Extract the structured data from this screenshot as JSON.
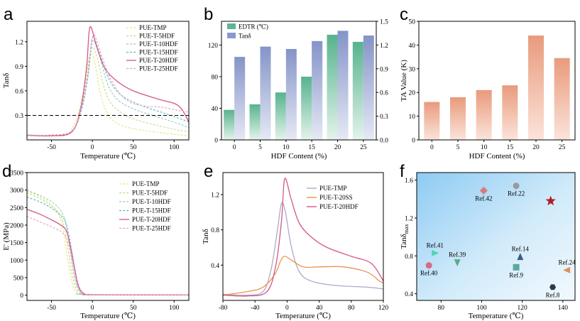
{
  "panel_letters": [
    "a",
    "b",
    "c",
    "d",
    "e",
    "f"
  ],
  "chart_data": [
    {
      "id": "a",
      "type": "line",
      "xlabel": "Temperature (℃)",
      "ylabel": "Tanδ",
      "xlim": [
        -80,
        118
      ],
      "ylim": [
        0,
        1.45
      ],
      "xticks": [
        -50,
        0,
        50,
        100
      ],
      "yticks": [
        0.3,
        0.6,
        0.9,
        1.2
      ],
      "hline": 0.3,
      "legend": "top-right",
      "series": [
        {
          "name": "PUE-TMP",
          "color": "#e6e67a",
          "dash": true,
          "points": [
            [
              -80,
              0.05
            ],
            [
              -50,
              0.05
            ],
            [
              -30,
              0.07
            ],
            [
              -18,
              0.3
            ],
            [
              -10,
              0.65
            ],
            [
              -3,
              1.05
            ],
            [
              3,
              0.95
            ],
            [
              10,
              0.55
            ],
            [
              20,
              0.3
            ],
            [
              35,
              0.18
            ],
            [
              60,
              0.12
            ],
            [
              90,
              0.08
            ],
            [
              118,
              0.05
            ]
          ]
        },
        {
          "name": "PUE-T-5HDF",
          "color": "#c9d98c",
          "dash": true,
          "points": [
            [
              -80,
              0.05
            ],
            [
              -50,
              0.05
            ],
            [
              -28,
              0.08
            ],
            [
              -16,
              0.3
            ],
            [
              -8,
              0.7
            ],
            [
              -1,
              1.12
            ],
            [
              6,
              1.0
            ],
            [
              15,
              0.62
            ],
            [
              25,
              0.42
            ],
            [
              45,
              0.28
            ],
            [
              70,
              0.2
            ],
            [
              100,
              0.13
            ],
            [
              118,
              0.1
            ]
          ]
        },
        {
          "name": "PUE-T-10HDF",
          "color": "#8fd1b6",
          "dash": true,
          "points": [
            [
              -80,
              0.05
            ],
            [
              -50,
              0.05
            ],
            [
              -26,
              0.1
            ],
            [
              -14,
              0.35
            ],
            [
              -6,
              0.75
            ],
            [
              0,
              1.2
            ],
            [
              8,
              1.05
            ],
            [
              18,
              0.7
            ],
            [
              30,
              0.5
            ],
            [
              50,
              0.38
            ],
            [
              80,
              0.28
            ],
            [
              105,
              0.2
            ],
            [
              118,
              0.15
            ]
          ]
        },
        {
          "name": "PUE-T-15HDF",
          "color": "#5fb7c4",
          "dash": true,
          "points": [
            [
              -80,
              0.06
            ],
            [
              -50,
              0.06
            ],
            [
              -25,
              0.1
            ],
            [
              -13,
              0.38
            ],
            [
              -5,
              0.8
            ],
            [
              0,
              1.25
            ],
            [
              8,
              1.08
            ],
            [
              20,
              0.75
            ],
            [
              35,
              0.55
            ],
            [
              60,
              0.42
            ],
            [
              90,
              0.32
            ],
            [
              118,
              0.22
            ]
          ]
        },
        {
          "name": "PUE-T-20HDF",
          "color": "#d4568a",
          "dash": false,
          "points": [
            [
              -80,
              0.06
            ],
            [
              -50,
              0.05
            ],
            [
              -25,
              0.1
            ],
            [
              -14,
              0.4
            ],
            [
              -7,
              0.9
            ],
            [
              -3,
              1.38
            ],
            [
              5,
              1.15
            ],
            [
              15,
              0.88
            ],
            [
              30,
              0.72
            ],
            [
              50,
              0.6
            ],
            [
              80,
              0.5
            ],
            [
              105,
              0.42
            ],
            [
              118,
              0.22
            ]
          ]
        },
        {
          "name": "PUE-T-25HDF",
          "color": "#e9a0c4",
          "dash": true,
          "points": [
            [
              -80,
              0.06
            ],
            [
              -50,
              0.06
            ],
            [
              -24,
              0.12
            ],
            [
              -12,
              0.45
            ],
            [
              -4,
              0.9
            ],
            [
              1,
              1.28
            ],
            [
              9,
              1.1
            ],
            [
              22,
              0.75
            ],
            [
              40,
              0.5
            ],
            [
              60,
              0.42
            ],
            [
              85,
              0.4
            ],
            [
              105,
              0.36
            ],
            [
              118,
              0.34
            ]
          ]
        }
      ]
    },
    {
      "id": "b",
      "type": "bar",
      "xlabel": "HDF Content (%)",
      "categories": [
        "0",
        "5",
        "10",
        "15",
        "20",
        "25"
      ],
      "ylim_left": [
        0,
        150
      ],
      "yticks_left": [
        0,
        40,
        80,
        120
      ],
      "ylim_right": [
        0,
        1.5
      ],
      "yticks_right": [
        0.0,
        0.3,
        0.6,
        0.9,
        1.2,
        1.5
      ],
      "legend": "top-left",
      "series": [
        {
          "name": "EDTR (℃)",
          "axis": "left",
          "color": "#5fb592",
          "values": [
            38,
            45,
            60,
            80,
            133,
            124
          ]
        },
        {
          "name": "Tanδ",
          "axis": "right",
          "color": "#8a98cc",
          "values": [
            1.05,
            1.18,
            1.15,
            1.25,
            1.38,
            1.32
          ]
        }
      ]
    },
    {
      "id": "c",
      "type": "bar",
      "xlabel": "HDF Content (%)",
      "ylabel": "TA Value (K)",
      "categories": [
        "0",
        "5",
        "10",
        "15",
        "20",
        "25"
      ],
      "ylim": [
        0,
        50
      ],
      "yticks": [
        0,
        10,
        20,
        30,
        40,
        50
      ],
      "color": "#eaa184",
      "values": [
        16,
        18,
        21,
        23,
        44,
        34.5
      ]
    },
    {
      "id": "d",
      "type": "line",
      "xlabel": "Temperature (℃)",
      "ylabel": "E' (MPa)",
      "xlim": [
        -80,
        118
      ],
      "ylim": [
        -150,
        3500
      ],
      "xticks": [
        -50,
        0,
        50,
        100
      ],
      "yticks": [
        0,
        500,
        1000,
        1500,
        2000,
        2500,
        3000,
        3500
      ],
      "legend": "top-right",
      "series": [
        {
          "name": "PUE-TMP",
          "color": "#e6e67a",
          "dash": true,
          "points": [
            [
              -80,
              2980
            ],
            [
              -65,
              2820
            ],
            [
              -50,
              2580
            ],
            [
              -42,
              2350
            ],
            [
              -36,
              1900
            ],
            [
              -32,
              1300
            ],
            [
              -27,
              600
            ],
            [
              -22,
              150
            ],
            [
              -15,
              30
            ],
            [
              0,
              10
            ],
            [
              118,
              5
            ]
          ]
        },
        {
          "name": "PUE-T-5HDF",
          "color": "#c9d98c",
          "dash": true,
          "points": [
            [
              -80,
              2930
            ],
            [
              -65,
              2770
            ],
            [
              -50,
              2540
            ],
            [
              -40,
              2300
            ],
            [
              -34,
              1900
            ],
            [
              -29,
              1200
            ],
            [
              -24,
              500
            ],
            [
              -18,
              100
            ],
            [
              -8,
              20
            ],
            [
              118,
              5
            ]
          ]
        },
        {
          "name": "PUE-T-10HDF",
          "color": "#8fd1b6",
          "dash": true,
          "points": [
            [
              -80,
              3000
            ],
            [
              -60,
              2800
            ],
            [
              -45,
              2580
            ],
            [
              -36,
              2300
            ],
            [
              -31,
              1850
            ],
            [
              -26,
              1100
            ],
            [
              -21,
              400
            ],
            [
              -15,
              80
            ],
            [
              -5,
              15
            ],
            [
              118,
              5
            ]
          ]
        },
        {
          "name": "PUE-T-15HDF",
          "color": "#5fb7c4",
          "dash": true,
          "points": [
            [
              -80,
              2800
            ],
            [
              -60,
              2620
            ],
            [
              -45,
              2400
            ],
            [
              -34,
              2150
            ],
            [
              -29,
              1750
            ],
            [
              -24,
              1100
            ],
            [
              -19,
              450
            ],
            [
              -13,
              100
            ],
            [
              -3,
              20
            ],
            [
              118,
              5
            ]
          ]
        },
        {
          "name": "PUE-T-20HDF",
          "color": "#d4568a",
          "dash": false,
          "points": [
            [
              -80,
              2450
            ],
            [
              -65,
              2320
            ],
            [
              -50,
              2150
            ],
            [
              -40,
              2020
            ],
            [
              -32,
              1850
            ],
            [
              -27,
              1400
            ],
            [
              -22,
              800
            ],
            [
              -17,
              250
            ],
            [
              -10,
              40
            ],
            [
              0,
              10
            ],
            [
              118,
              5
            ]
          ]
        },
        {
          "name": "PUE-T-25HDF",
          "color": "#e9a0c4",
          "dash": true,
          "points": [
            [
              -80,
              2250
            ],
            [
              -60,
              2050
            ],
            [
              -45,
              1900
            ],
            [
              -34,
              1720
            ],
            [
              -28,
              1350
            ],
            [
              -23,
              750
            ],
            [
              -18,
              250
            ],
            [
              -12,
              50
            ],
            [
              0,
              10
            ],
            [
              118,
              5
            ]
          ]
        }
      ]
    },
    {
      "id": "e",
      "type": "line",
      "xlabel": "Temperature (℃)",
      "ylabel": "Tanδ",
      "xlim": [
        -80,
        120
      ],
      "ylim": [
        0,
        1.45
      ],
      "xticks": [
        -80,
        -40,
        0,
        40,
        80,
        120
      ],
      "yticks": [
        0.4,
        0.8,
        1.2
      ],
      "legend": "top-right",
      "series": [
        {
          "name": "PUE-TMP",
          "color": "#b0a8c8",
          "points": [
            [
              -80,
              0.07
            ],
            [
              -50,
              0.06
            ],
            [
              -30,
              0.1
            ],
            [
              -20,
              0.35
            ],
            [
              -12,
              0.8
            ],
            [
              -7,
              1.1
            ],
            [
              -2,
              1.0
            ],
            [
              5,
              0.62
            ],
            [
              15,
              0.33
            ],
            [
              30,
              0.22
            ],
            [
              60,
              0.17
            ],
            [
              100,
              0.15
            ],
            [
              120,
              0.13
            ]
          ]
        },
        {
          "name": "PUE-T-20SS",
          "color": "#e8954f",
          "points": [
            [
              -80,
              0.06
            ],
            [
              -50,
              0.1
            ],
            [
              -30,
              0.15
            ],
            [
              -15,
              0.3
            ],
            [
              -8,
              0.45
            ],
            [
              -3,
              0.5
            ],
            [
              5,
              0.46
            ],
            [
              20,
              0.38
            ],
            [
              40,
              0.38
            ],
            [
              70,
              0.38
            ],
            [
              100,
              0.32
            ],
            [
              115,
              0.22
            ],
            [
              120,
              0.2
            ]
          ]
        },
        {
          "name": "PUE-T-20HDF",
          "color": "#d4568a",
          "points": [
            [
              -80,
              0.06
            ],
            [
              -50,
              0.05
            ],
            [
              -25,
              0.1
            ],
            [
              -14,
              0.4
            ],
            [
              -7,
              0.9
            ],
            [
              -3,
              1.38
            ],
            [
              5,
              1.15
            ],
            [
              15,
              0.88
            ],
            [
              30,
              0.72
            ],
            [
              50,
              0.6
            ],
            [
              80,
              0.5
            ],
            [
              105,
              0.42
            ],
            [
              120,
              0.22
            ]
          ]
        }
      ]
    },
    {
      "id": "f",
      "type": "scatter",
      "xlabel": "Temperature (℃)",
      "ylabel": "Tanδ",
      "ylabel_sub": "max",
      "xlim": [
        68,
        146
      ],
      "ylim": [
        0.33,
        1.68
      ],
      "xticks": [
        80,
        100,
        120,
        140
      ],
      "yticks": [
        0.4,
        0.8,
        1.2,
        1.6
      ],
      "background": "gradient-blue",
      "points": [
        {
          "label": "Ref.42",
          "x": 101,
          "y": 1.49,
          "marker": "diamond",
          "color": "#d87a7a"
        },
        {
          "label": "Ref.22",
          "x": 117,
          "y": 1.54,
          "marker": "circle",
          "color": "#9a9a9a"
        },
        {
          "label": "",
          "x": 134,
          "y": 1.38,
          "marker": "star",
          "color": "#b0202a"
        },
        {
          "label": "Ref.41",
          "x": 77,
          "y": 0.83,
          "marker": "triangle-right",
          "color": "#4fd6b0"
        },
        {
          "label": "Ref.39",
          "x": 88,
          "y": 0.73,
          "marker": "triangle-down",
          "color": "#57ae82"
        },
        {
          "label": "Ref.40",
          "x": 74,
          "y": 0.7,
          "marker": "circle",
          "color": "#d86a86"
        },
        {
          "label": "Ref.14",
          "x": 119,
          "y": 0.79,
          "marker": "triangle-up",
          "color": "#3a5e80"
        },
        {
          "label": "Ref.9",
          "x": 117,
          "y": 0.68,
          "marker": "square",
          "color": "#5aa8a0"
        },
        {
          "label": "Ref.24",
          "x": 142,
          "y": 0.65,
          "marker": "triangle-left",
          "color": "#e0905a"
        },
        {
          "label": "Ref.8",
          "x": 135,
          "y": 0.47,
          "marker": "hexagon",
          "color": "#303848"
        }
      ]
    }
  ]
}
